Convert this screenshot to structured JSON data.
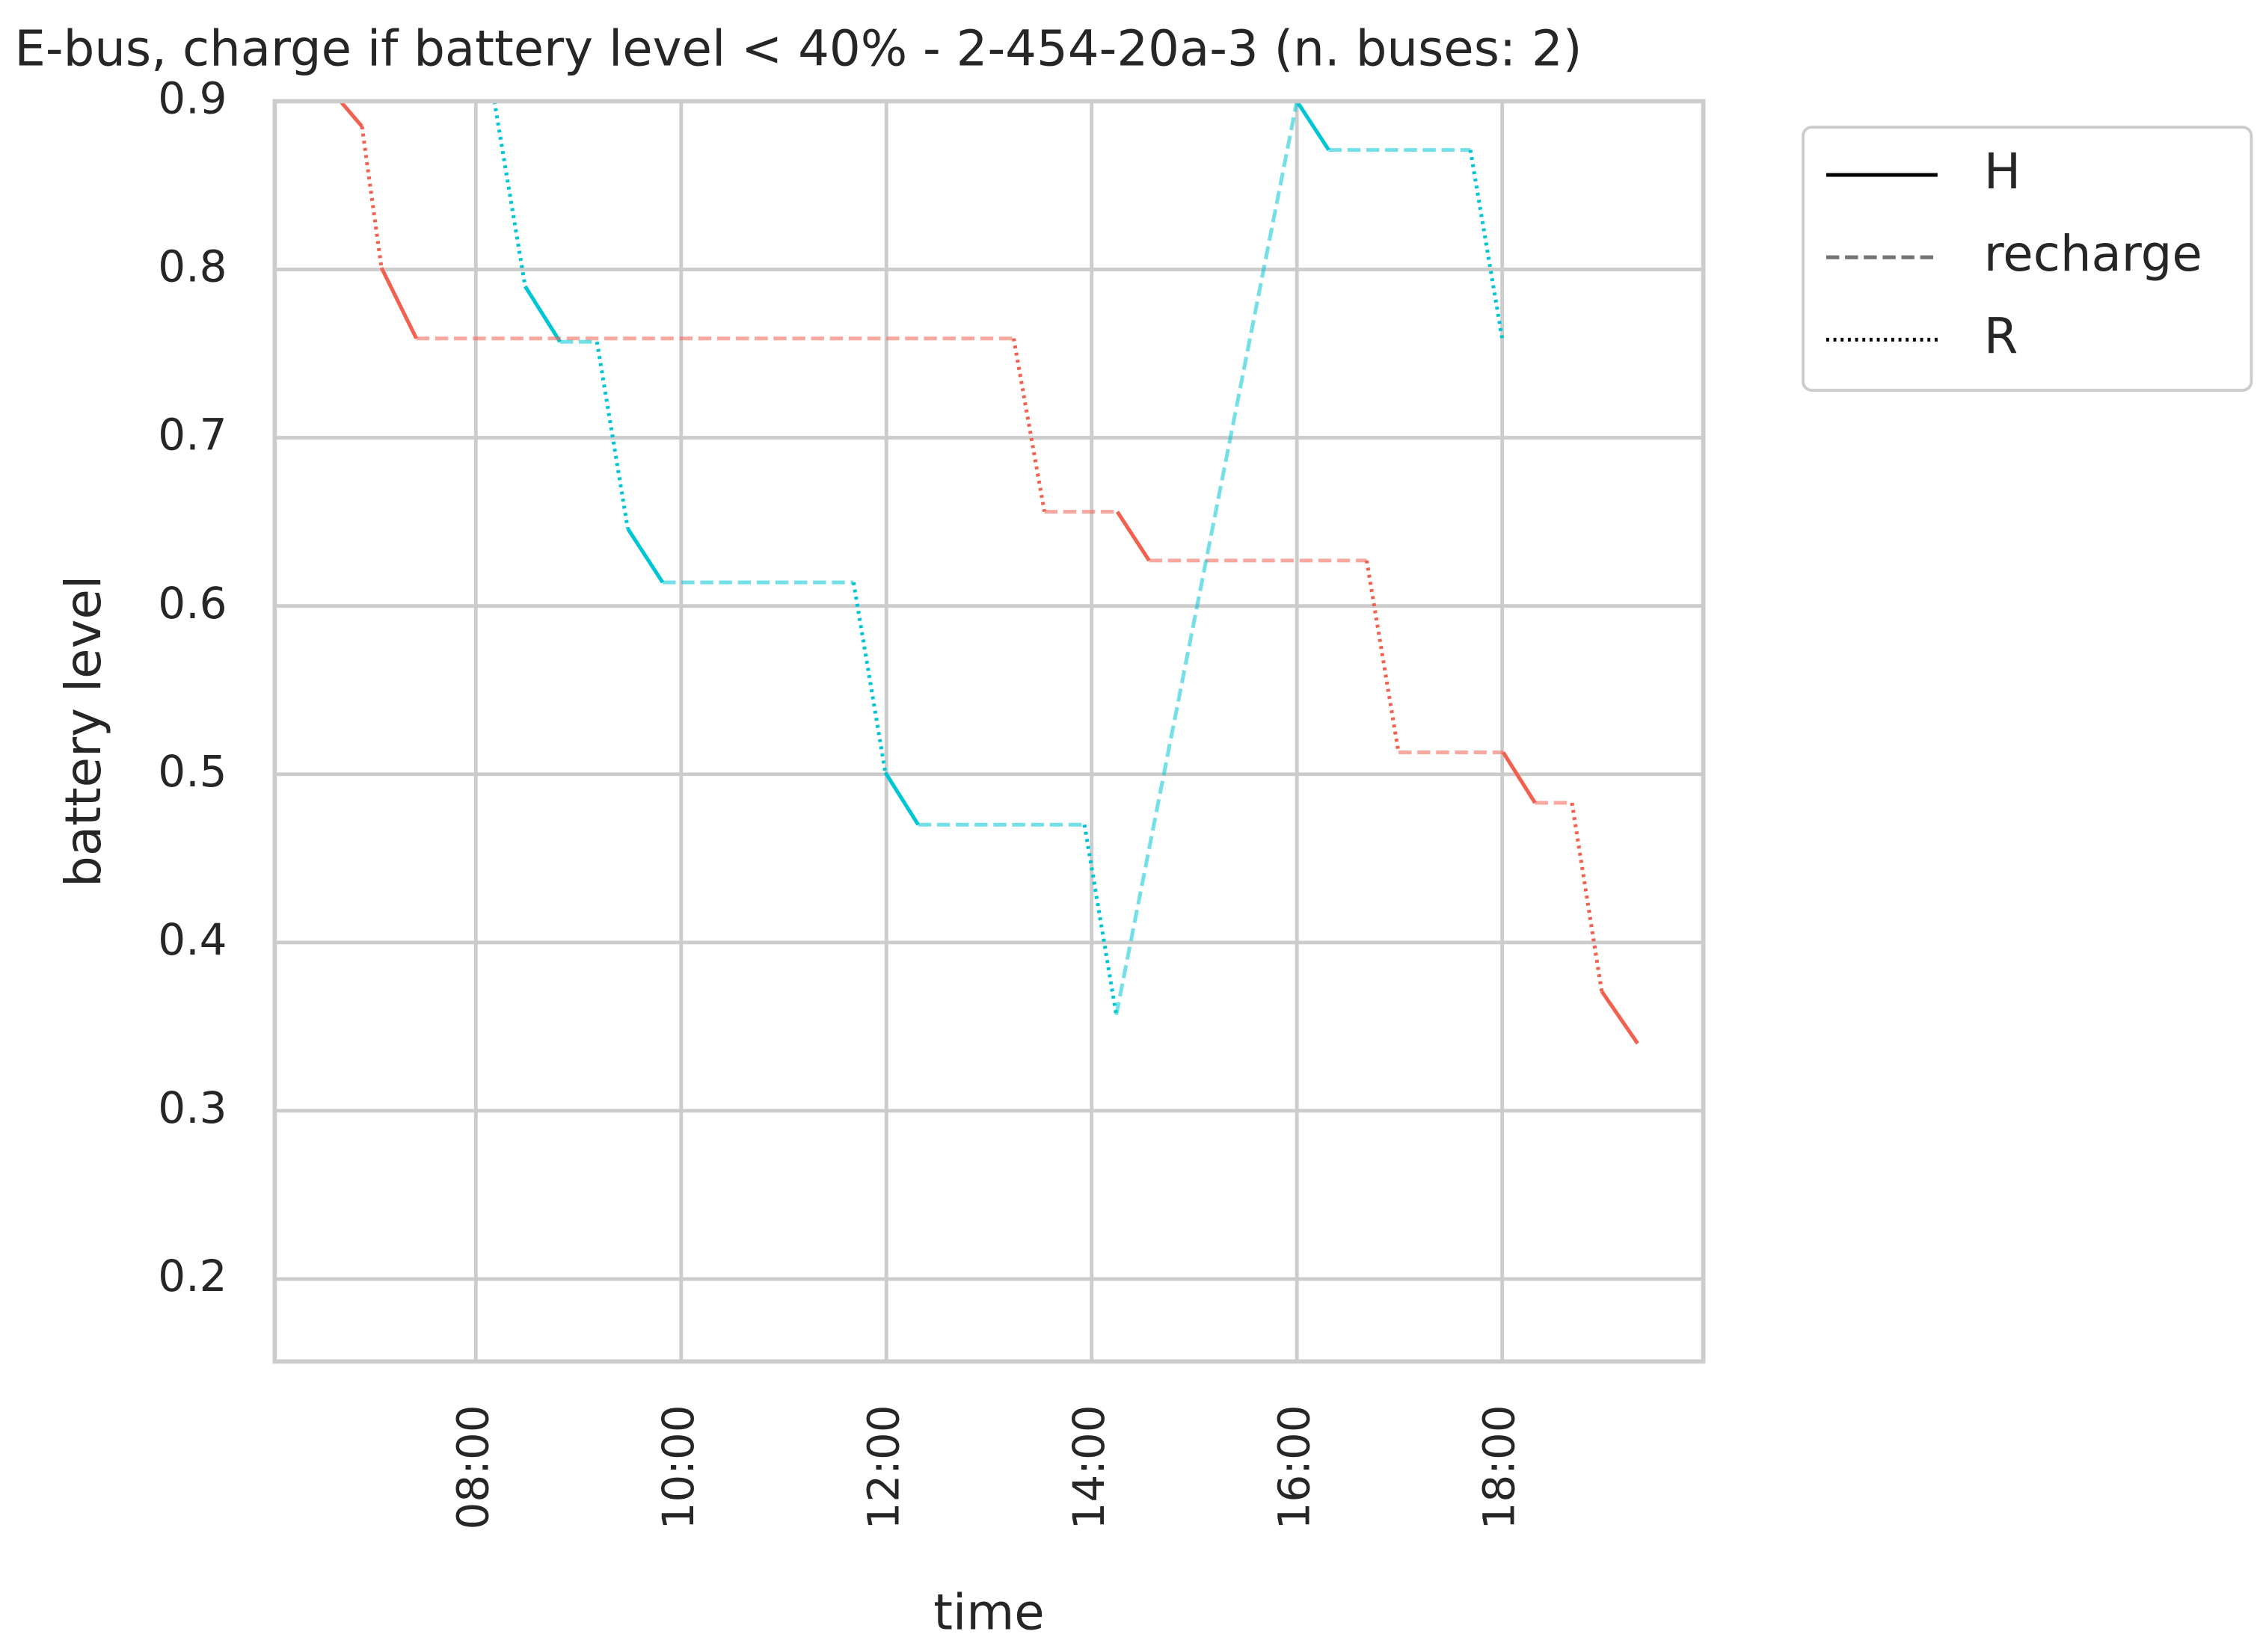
{
  "chart_data": {
    "type": "line",
    "title": "E-bus, charge if battery level < 40% - 2-454-20a-3 (n. buses: 2)",
    "x_label": "time",
    "y_label": "battery level",
    "xlim": [
      6.04,
      19.96
    ],
    "ylim": [
      0.151,
      0.9
    ],
    "xticks": [
      {
        "value": 8,
        "label": "08:00"
      },
      {
        "value": 10,
        "label": "10:00"
      },
      {
        "value": 12,
        "label": "12:00"
      },
      {
        "value": 14,
        "label": "14:00"
      },
      {
        "value": 16,
        "label": "16:00"
      },
      {
        "value": 18,
        "label": "18:00"
      }
    ],
    "yticks": [
      0.2,
      0.3,
      0.4,
      0.5,
      0.6,
      0.7,
      0.8,
      0.9
    ],
    "grid": true,
    "legend": "outside-upper-right",
    "series": [
      {
        "name": "H",
        "line_style": "solid",
        "color": "#000000",
        "opacity": 1,
        "segments": [
          {
            "color": "#f2604f",
            "x": [
              6.68,
              6.89
            ],
            "values": [
              0.9,
              0.885
            ]
          },
          {
            "color": "#f2604f",
            "x": [
              7.08,
              7.42
            ],
            "values": [
              0.801,
              0.759
            ]
          },
          {
            "color": "#f2604f",
            "x": [
              14.25,
              14.56
            ],
            "values": [
              0.656,
              0.627
            ]
          },
          {
            "color": "#f2604f",
            "x": [
              18.01,
              18.32
            ],
            "values": [
              0.513,
              0.483
            ]
          },
          {
            "color": "#f2604f",
            "x": [
              18.97,
              19.32
            ],
            "values": [
              0.371,
              0.34
            ]
          },
          {
            "color": "#00c5d4",
            "x": [
              8.48,
              8.82
            ],
            "values": [
              0.79,
              0.757
            ]
          },
          {
            "color": "#00c5d4",
            "x": [
              9.48,
              9.82
            ],
            "values": [
              0.646,
              0.614
            ]
          },
          {
            "color": "#00c5d4",
            "x": [
              11.99,
              12.31
            ],
            "values": [
              0.501,
              0.47
            ]
          },
          {
            "color": "#00c5d4",
            "x": [
              16.0,
              16.31
            ],
            "values": [
              0.9,
              0.871
            ]
          }
        ]
      },
      {
        "name": "recharge",
        "line_style": "dashed",
        "color": "#000000",
        "opacity": 0.55,
        "segments": [
          {
            "color": "#f2604f",
            "x": [
              7.42,
              13.24
            ],
            "values": [
              0.759,
              0.759
            ]
          },
          {
            "color": "#f2604f",
            "x": [
              13.54,
              14.25
            ],
            "values": [
              0.656,
              0.656
            ]
          },
          {
            "color": "#f2604f",
            "x": [
              14.56,
              16.68
            ],
            "values": [
              0.627,
              0.627
            ]
          },
          {
            "color": "#f2604f",
            "x": [
              16.99,
              18.01
            ],
            "values": [
              0.513,
              0.513
            ]
          },
          {
            "color": "#f2604f",
            "x": [
              18.32,
              18.68
            ],
            "values": [
              0.483,
              0.483
            ]
          },
          {
            "color": "#00c5d4",
            "x": [
              8.82,
              9.18
            ],
            "values": [
              0.757,
              0.757
            ]
          },
          {
            "color": "#00c5d4",
            "x": [
              9.82,
              11.68
            ],
            "values": [
              0.614,
              0.614
            ]
          },
          {
            "color": "#00c5d4",
            "x": [
              12.31,
              13.93
            ],
            "values": [
              0.47,
              0.47
            ]
          },
          {
            "color": "#00c5d4",
            "x": [
              14.24,
              16.0
            ],
            "values": [
              0.357,
              0.9
            ]
          },
          {
            "color": "#00c5d4",
            "x": [
              16.31,
              17.69
            ],
            "values": [
              0.871,
              0.871
            ]
          }
        ]
      },
      {
        "name": "R",
        "line_style": "dotted",
        "color": "#000000",
        "opacity": 1,
        "segments": [
          {
            "color": "#f2604f",
            "x": [
              6.89,
              7.08
            ],
            "values": [
              0.885,
              0.801
            ]
          },
          {
            "color": "#f2604f",
            "x": [
              13.24,
              13.54
            ],
            "values": [
              0.759,
              0.656
            ]
          },
          {
            "color": "#f2604f",
            "x": [
              16.68,
              16.99
            ],
            "values": [
              0.627,
              0.513
            ]
          },
          {
            "color": "#f2604f",
            "x": [
              18.68,
              18.97
            ],
            "values": [
              0.483,
              0.371
            ]
          },
          {
            "color": "#00c5d4",
            "x": [
              8.18,
              8.48
            ],
            "values": [
              0.9,
              0.79
            ]
          },
          {
            "color": "#00c5d4",
            "x": [
              9.18,
              9.48
            ],
            "values": [
              0.757,
              0.646
            ]
          },
          {
            "color": "#00c5d4",
            "x": [
              11.68,
              11.99
            ],
            "values": [
              0.614,
              0.501
            ]
          },
          {
            "color": "#00c5d4",
            "x": [
              13.93,
              14.24
            ],
            "values": [
              0.47,
              0.357
            ]
          },
          {
            "color": "#00c5d4",
            "x": [
              17.69,
              18.0
            ],
            "values": [
              0.871,
              0.759
            ]
          }
        ]
      }
    ]
  }
}
